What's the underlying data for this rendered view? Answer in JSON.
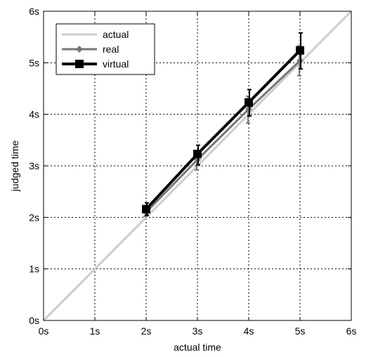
{
  "chart_data": {
    "type": "line",
    "title": "",
    "xlabel": "actual time",
    "ylabel": "judged time",
    "xlim": [
      0,
      6
    ],
    "ylim": [
      0,
      6
    ],
    "grid": true,
    "legend_position": "top-left",
    "xticks": [
      0,
      1,
      2,
      3,
      4,
      5,
      6
    ],
    "yticks": [
      0,
      1,
      2,
      3,
      4,
      5,
      6
    ],
    "xtick_labels": [
      "0s",
      "1s",
      "2s",
      "3s",
      "4s",
      "5s",
      "6s"
    ],
    "ytick_labels": [
      "0s",
      "1s",
      "2s",
      "3s",
      "4s",
      "5s",
      "6s"
    ],
    "series": [
      {
        "name": "actual",
        "color": "#cccccc",
        "marker": "none",
        "x": [
          0,
          6
        ],
        "y": [
          0,
          6
        ]
      },
      {
        "name": "real",
        "color": "#777777",
        "marker": "diamond",
        "x": [
          2,
          3,
          4,
          5
        ],
        "y": [
          2.1,
          3.12,
          4.1,
          5.04
        ],
        "err_low": [
          2.02,
          2.92,
          3.83,
          4.75
        ],
        "err_high": [
          2.2,
          3.28,
          4.35,
          5.33
        ]
      },
      {
        "name": "virtual",
        "color": "#000000",
        "marker": "square",
        "x": [
          2,
          3,
          4,
          5
        ],
        "y": [
          2.16,
          3.23,
          4.23,
          5.24
        ],
        "err_low": [
          2.04,
          3.02,
          3.97,
          4.88
        ],
        "err_high": [
          2.28,
          3.4,
          4.48,
          5.58
        ]
      }
    ]
  }
}
